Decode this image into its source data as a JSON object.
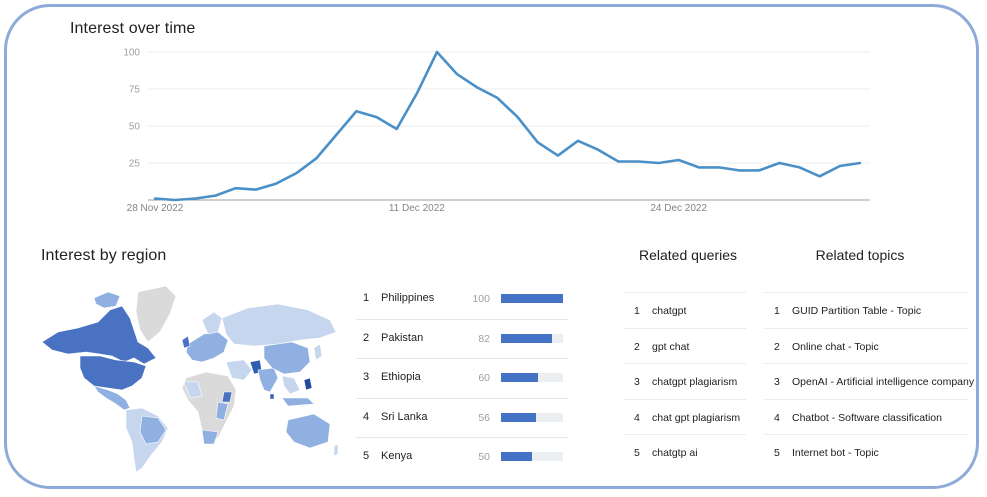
{
  "interest_over_time": {
    "title": "Interest over time",
    "chart_data": {
      "type": "line",
      "title": "",
      "y_ticks": [
        100,
        75,
        50,
        25
      ],
      "ylim": [
        0,
        100
      ],
      "x_ticks": [
        "28 Nov 2022",
        "11 Dec 2022",
        "24 Dec 2022"
      ],
      "x_tick_index": [
        0,
        13,
        26
      ],
      "series": [
        {
          "values": [
            1,
            0,
            1,
            3,
            8,
            7,
            11,
            18,
            28,
            44,
            60,
            56,
            48,
            72,
            100,
            85,
            76,
            69,
            56,
            39,
            30,
            40,
            34,
            26,
            26,
            25,
            27,
            22,
            22,
            20,
            20,
            25,
            22,
            16,
            23,
            25
          ]
        }
      ],
      "grid": true,
      "line_color": "#4a90c8"
    }
  },
  "interest_by_region": {
    "title": "Interest by region",
    "rows": [
      {
        "rank": "1",
        "name": "Philippines",
        "value": 100
      },
      {
        "rank": "2",
        "name": "Pakistan",
        "value": 82
      },
      {
        "rank": "3",
        "name": "Ethiopia",
        "value": 60
      },
      {
        "rank": "4",
        "name": "Sri Lanka",
        "value": 56
      },
      {
        "rank": "5",
        "name": "Kenya",
        "value": 50
      }
    ]
  },
  "related_queries": {
    "title": "Related queries",
    "rows": [
      {
        "rank": "1",
        "label": "chatgpt"
      },
      {
        "rank": "2",
        "label": "gpt chat"
      },
      {
        "rank": "3",
        "label": "chatgpt plagiarism"
      },
      {
        "rank": "4",
        "label": "chat gpt plagiarism"
      },
      {
        "rank": "5",
        "label": "chatgtp ai"
      }
    ]
  },
  "related_topics": {
    "title": "Related topics",
    "rows": [
      {
        "rank": "1",
        "label": "GUID Partition Table - Topic"
      },
      {
        "rank": "2",
        "label": "Online chat - Topic"
      },
      {
        "rank": "3",
        "label": "OpenAI - Artificial intelligence company"
      },
      {
        "rank": "4",
        "label": "Chatbot - Software classification"
      },
      {
        "rank": "5",
        "label": "Internet bot - Topic"
      }
    ]
  },
  "colors": {
    "frame_border": "#8eaad8",
    "bar": "#4472c4",
    "map_light": "#c6d6ee",
    "map_mid": "#8fb0e0",
    "map_dark": "#4a72c2",
    "map_none": "#dadada"
  }
}
